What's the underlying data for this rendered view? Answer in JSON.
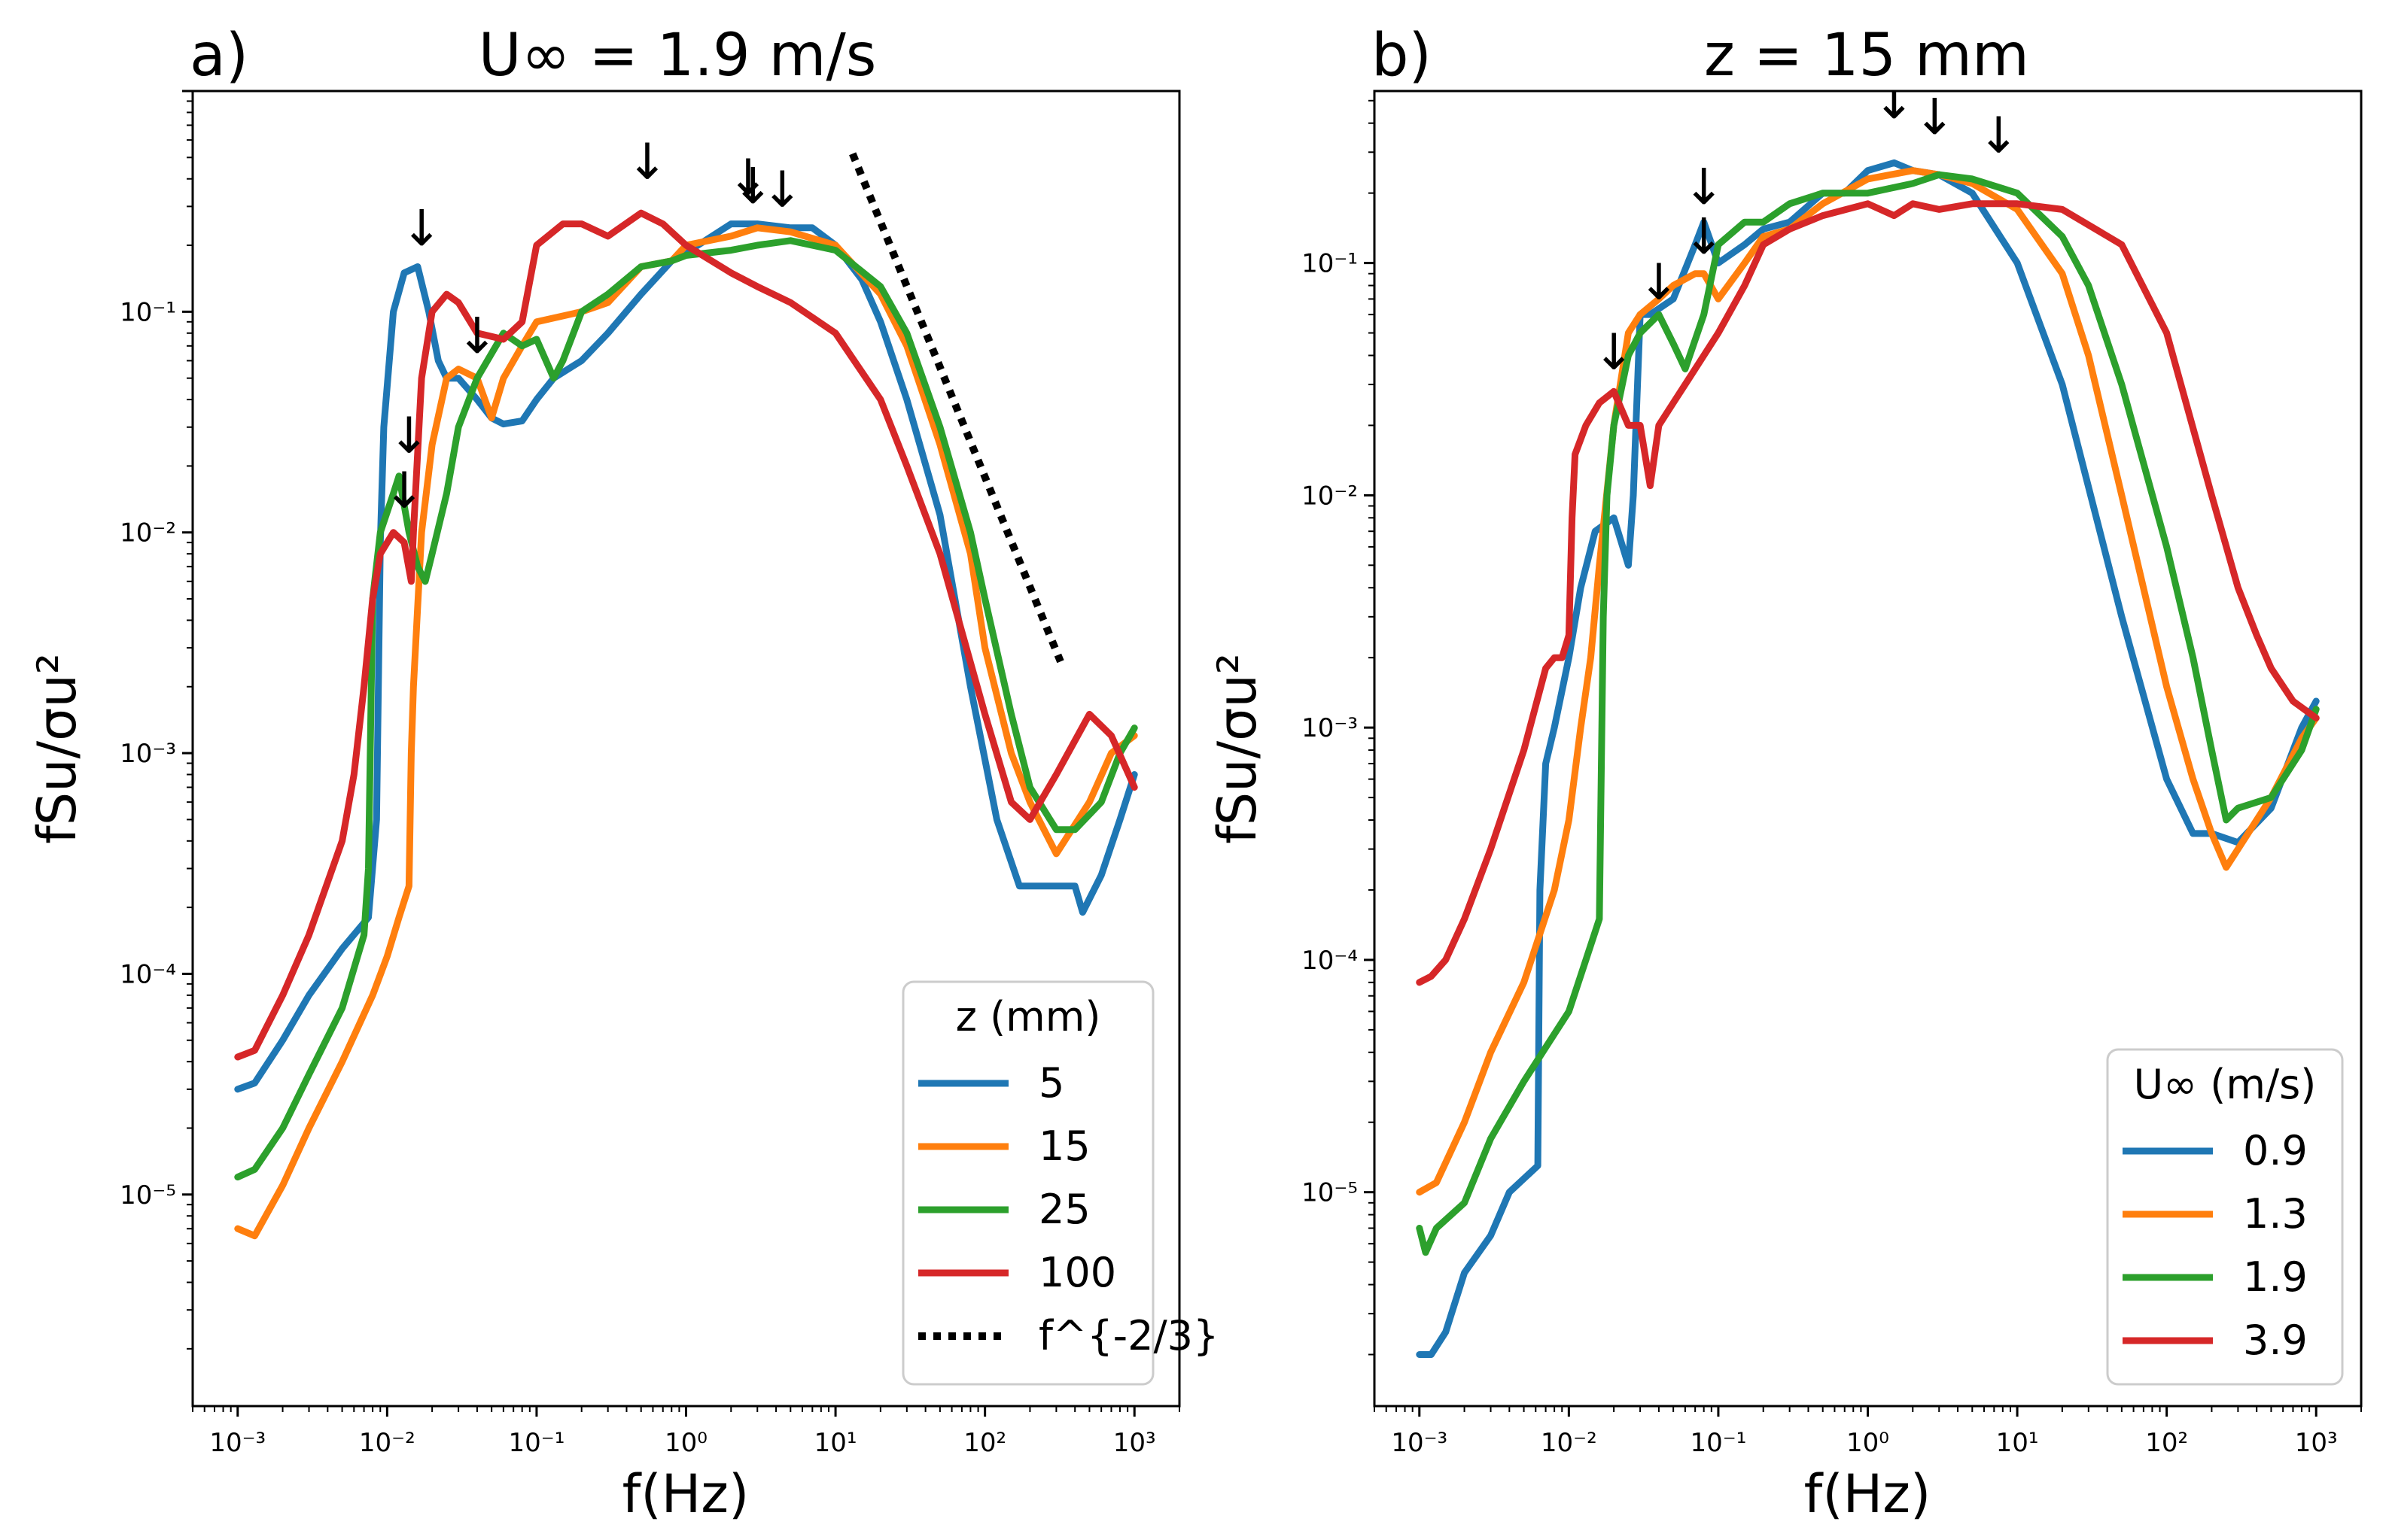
{
  "chart_data": [
    {
      "type": "line",
      "panel_label": "a)",
      "title": "U∞ = 1.9 m/s",
      "xlabel": "f(Hz)",
      "ylabel": "fSu/σu²",
      "xscale": "log",
      "yscale": "log",
      "xlim": [
        0.0005,
        2000
      ],
      "ylim": [
        1.1e-06,
        1
      ],
      "xticks": [
        0.001,
        0.01,
        0.1,
        1,
        10,
        100,
        1000
      ],
      "xtick_labels": [
        "10⁻³",
        "10⁻²",
        "10⁻¹",
        "10⁰",
        "10¹",
        "10²",
        "10³"
      ],
      "yticks": [
        1e-05,
        0.0001,
        0.001,
        0.01,
        0.1
      ],
      "ytick_labels": [
        "10⁻⁵",
        "10⁻⁴",
        "10⁻³",
        "10⁻²",
        "10⁻¹"
      ],
      "legend_title": "z (mm)",
      "legend_position": "lower-right",
      "series": [
        {
          "name": "5",
          "color": "#1f77b4",
          "x": [
            0.001,
            0.0013,
            0.002,
            0.003,
            0.005,
            0.0075,
            0.0085,
            0.009,
            0.0095,
            0.011,
            0.013,
            0.016,
            0.019,
            0.022,
            0.025,
            0.03,
            0.04,
            0.05,
            0.06,
            0.08,
            0.1,
            0.13,
            0.2,
            0.3,
            0.5,
            0.8,
            1.2,
            2,
            3,
            5,
            7,
            10,
            15,
            20,
            30,
            50,
            80,
            120,
            170,
            200,
            300,
            400,
            450,
            600,
            800,
            1000
          ],
          "y": [
            3e-05,
            3.2e-05,
            5e-05,
            8e-05,
            0.00013,
            0.00018,
            0.0005,
            0.009,
            0.03,
            0.1,
            0.15,
            0.16,
            0.1,
            0.06,
            0.05,
            0.05,
            0.04,
            0.033,
            0.031,
            0.032,
            0.04,
            0.05,
            0.06,
            0.08,
            0.12,
            0.17,
            0.2,
            0.25,
            0.25,
            0.24,
            0.24,
            0.2,
            0.14,
            0.09,
            0.04,
            0.012,
            0.002,
            0.0005,
            0.00025,
            0.00025,
            0.00025,
            0.00025,
            0.00019,
            0.00028,
            0.0005,
            0.0008
          ]
        },
        {
          "name": "15",
          "color": "#ff7f0e",
          "x": [
            0.001,
            0.0013,
            0.002,
            0.003,
            0.005,
            0.008,
            0.01,
            0.012,
            0.014,
            0.0145,
            0.015,
            0.017,
            0.02,
            0.025,
            0.03,
            0.04,
            0.05,
            0.06,
            0.08,
            0.1,
            0.2,
            0.3,
            0.5,
            0.8,
            1,
            2,
            3,
            5,
            10,
            20,
            30,
            50,
            80,
            100,
            150,
            200,
            300,
            500,
            700,
            1000
          ],
          "y": [
            7e-06,
            6.5e-06,
            1.1e-05,
            2e-05,
            4e-05,
            8e-05,
            0.00012,
            0.00018,
            0.00025,
            0.001,
            0.002,
            0.01,
            0.025,
            0.05,
            0.055,
            0.05,
            0.033,
            0.05,
            0.07,
            0.09,
            0.1,
            0.11,
            0.16,
            0.17,
            0.2,
            0.22,
            0.24,
            0.23,
            0.2,
            0.12,
            0.07,
            0.025,
            0.008,
            0.003,
            0.001,
            0.0006,
            0.00035,
            0.0006,
            0.001,
            0.0012
          ]
        },
        {
          "name": "25",
          "color": "#2ca02c",
          "x": [
            0.001,
            0.0013,
            0.002,
            0.003,
            0.005,
            0.007,
            0.0075,
            0.008,
            0.009,
            0.011,
            0.012,
            0.014,
            0.016,
            0.018,
            0.02,
            0.025,
            0.03,
            0.04,
            0.06,
            0.08,
            0.1,
            0.13,
            0.15,
            0.2,
            0.3,
            0.5,
            0.8,
            1,
            2,
            3,
            5,
            10,
            20,
            30,
            50,
            80,
            100,
            150,
            200,
            300,
            400,
            600,
            800,
            1000
          ],
          "y": [
            1.2e-05,
            1.3e-05,
            2e-05,
            3.5e-05,
            7e-05,
            0.00015,
            0.0003,
            0.005,
            0.01,
            0.015,
            0.018,
            0.01,
            0.007,
            0.006,
            0.008,
            0.015,
            0.03,
            0.05,
            0.08,
            0.07,
            0.075,
            0.05,
            0.06,
            0.1,
            0.12,
            0.16,
            0.17,
            0.18,
            0.19,
            0.2,
            0.21,
            0.19,
            0.13,
            0.08,
            0.03,
            0.01,
            0.005,
            0.0015,
            0.0007,
            0.00045,
            0.00045,
            0.0006,
            0.001,
            0.0013
          ]
        },
        {
          "name": "100",
          "color": "#d62728",
          "x": [
            0.001,
            0.0013,
            0.002,
            0.003,
            0.005,
            0.006,
            0.007,
            0.008,
            0.009,
            0.011,
            0.013,
            0.0145,
            0.015,
            0.017,
            0.02,
            0.025,
            0.03,
            0.04,
            0.06,
            0.08,
            0.1,
            0.15,
            0.2,
            0.3,
            0.5,
            0.7,
            1,
            2,
            3,
            5,
            10,
            20,
            30,
            50,
            100,
            150,
            200,
            300,
            500,
            700,
            1000
          ],
          "y": [
            4.2e-05,
            4.5e-05,
            8e-05,
            0.00015,
            0.0004,
            0.0008,
            0.002,
            0.005,
            0.008,
            0.01,
            0.009,
            0.006,
            0.01,
            0.05,
            0.1,
            0.12,
            0.11,
            0.08,
            0.075,
            0.09,
            0.2,
            0.25,
            0.25,
            0.22,
            0.28,
            0.25,
            0.2,
            0.15,
            0.13,
            0.11,
            0.08,
            0.04,
            0.02,
            0.008,
            0.0015,
            0.0006,
            0.0005,
            0.0008,
            0.0015,
            0.0012,
            0.0007
          ]
        },
        {
          "name": "f^{-2/3}",
          "color": "#000000",
          "style": "dotted",
          "x": [
            13,
            320
          ],
          "y": [
            0.52,
            0.0026
          ]
        }
      ],
      "annotations": [
        {
          "text": "↓",
          "x": 0.017,
          "y": 0.2,
          "color": "#000000"
        },
        {
          "text": "↓",
          "x": 0.04,
          "y": 0.065,
          "color": "#000000"
        },
        {
          "text": "↓",
          "x": 0.014,
          "y": 0.023,
          "color": "#000000"
        },
        {
          "text": "↓",
          "x": 0.013,
          "y": 0.013,
          "color": "#000000"
        },
        {
          "text": "↓",
          "x": 0.55,
          "y": 0.4,
          "color": "#b0b0b0"
        },
        {
          "text": "↓",
          "x": 2.6,
          "y": 0.34,
          "color": "#b0b0b0"
        },
        {
          "text": "↓",
          "x": 2.8,
          "y": 0.31,
          "color": "#b0b0b0"
        },
        {
          "text": "↓",
          "x": 4.4,
          "y": 0.3,
          "color": "#b0b0b0"
        }
      ]
    },
    {
      "type": "line",
      "panel_label": "b)",
      "title": "z = 15 mm",
      "xlabel": "f(Hz)",
      "ylabel": "fSu/σu²",
      "xscale": "log",
      "yscale": "log",
      "xlim": [
        0.0005,
        2000
      ],
      "ylim": [
        1.2e-06,
        0.55
      ],
      "xticks": [
        0.001,
        0.01,
        0.1,
        1,
        10,
        100,
        1000
      ],
      "xtick_labels": [
        "10⁻³",
        "10⁻²",
        "10⁻¹",
        "10⁰",
        "10¹",
        "10²",
        "10³"
      ],
      "yticks": [
        1e-05,
        0.0001,
        0.001,
        0.01,
        0.1
      ],
      "ytick_labels": [
        "10⁻⁵",
        "10⁻⁴",
        "10⁻³",
        "10⁻²",
        "10⁻¹"
      ],
      "legend_title": "U∞ (m/s)",
      "legend_position": "lower-right",
      "series": [
        {
          "name": "0.9",
          "color": "#1f77b4",
          "x": [
            0.001,
            0.0012,
            0.0015,
            0.002,
            0.003,
            0.004,
            0.0062,
            0.0064,
            0.007,
            0.008,
            0.01,
            0.012,
            0.015,
            0.02,
            0.025,
            0.027,
            0.03,
            0.035,
            0.05,
            0.07,
            0.08,
            0.1,
            0.15,
            0.2,
            0.3,
            0.5,
            0.7,
            1,
            1.5,
            2,
            3,
            5,
            10,
            20,
            50,
            100,
            150,
            200,
            300,
            500,
            800,
            1000
          ],
          "y": [
            2e-06,
            2e-06,
            2.5e-06,
            4.5e-06,
            6.5e-06,
            1e-05,
            1.3e-05,
            0.0002,
            0.0007,
            0.001,
            0.002,
            0.004,
            0.007,
            0.008,
            0.005,
            0.01,
            0.06,
            0.06,
            0.07,
            0.12,
            0.15,
            0.1,
            0.12,
            0.14,
            0.15,
            0.2,
            0.2,
            0.25,
            0.27,
            0.25,
            0.24,
            0.2,
            0.1,
            0.03,
            0.003,
            0.0006,
            0.00035,
            0.00035,
            0.00032,
            0.00045,
            0.001,
            0.0013
          ]
        },
        {
          "name": "1.3",
          "color": "#ff7f0e",
          "x": [
            0.001,
            0.0013,
            0.002,
            0.003,
            0.005,
            0.008,
            0.01,
            0.012,
            0.014,
            0.016,
            0.02,
            0.025,
            0.03,
            0.04,
            0.05,
            0.07,
            0.08,
            0.1,
            0.15,
            0.2,
            0.3,
            0.5,
            1,
            2,
            3,
            5,
            10,
            20,
            30,
            50,
            100,
            150,
            200,
            250,
            300,
            500,
            800,
            1000
          ],
          "y": [
            1e-05,
            1.1e-05,
            2e-05,
            4e-05,
            8e-05,
            0.0002,
            0.0004,
            0.001,
            0.002,
            0.005,
            0.02,
            0.05,
            0.06,
            0.07,
            0.08,
            0.09,
            0.09,
            0.07,
            0.1,
            0.13,
            0.14,
            0.18,
            0.23,
            0.25,
            0.24,
            0.22,
            0.17,
            0.09,
            0.04,
            0.01,
            0.0015,
            0.0006,
            0.00035,
            0.00025,
            0.0003,
            0.0005,
            0.0009,
            0.0011
          ]
        },
        {
          "name": "1.9",
          "color": "#2ca02c",
          "x": [
            0.001,
            0.0011,
            0.0013,
            0.002,
            0.003,
            0.005,
            0.01,
            0.013,
            0.016,
            0.017,
            0.018,
            0.02,
            0.025,
            0.03,
            0.04,
            0.05,
            0.06,
            0.08,
            0.1,
            0.15,
            0.2,
            0.3,
            0.5,
            1,
            2,
            3,
            5,
            10,
            20,
            30,
            50,
            100,
            150,
            200,
            250,
            300,
            500,
            800,
            1000
          ],
          "y": [
            7e-06,
            5.5e-06,
            7e-06,
            9e-06,
            1.7e-05,
            3e-05,
            6e-05,
            0.0001,
            0.00015,
            0.003,
            0.01,
            0.02,
            0.04,
            0.05,
            0.06,
            0.045,
            0.035,
            0.06,
            0.12,
            0.15,
            0.15,
            0.18,
            0.2,
            0.2,
            0.22,
            0.24,
            0.23,
            0.2,
            0.13,
            0.08,
            0.03,
            0.006,
            0.002,
            0.0008,
            0.0004,
            0.00045,
            0.0005,
            0.0008,
            0.0012
          ]
        },
        {
          "name": "3.9",
          "color": "#d62728",
          "x": [
            0.001,
            0.0012,
            0.0015,
            0.002,
            0.003,
            0.005,
            0.007,
            0.008,
            0.009,
            0.01,
            0.0105,
            0.011,
            0.013,
            0.016,
            0.02,
            0.025,
            0.03,
            0.035,
            0.04,
            0.05,
            0.06,
            0.08,
            0.1,
            0.15,
            0.2,
            0.3,
            0.5,
            1,
            1.5,
            2,
            3,
            5,
            10,
            20,
            50,
            100,
            200,
            300,
            400,
            500,
            700,
            1000
          ],
          "y": [
            8e-05,
            8.5e-05,
            0.0001,
            0.00015,
            0.0003,
            0.0008,
            0.0018,
            0.002,
            0.002,
            0.0025,
            0.008,
            0.015,
            0.02,
            0.025,
            0.028,
            0.02,
            0.02,
            0.011,
            0.02,
            0.025,
            0.03,
            0.04,
            0.05,
            0.08,
            0.12,
            0.14,
            0.16,
            0.18,
            0.16,
            0.18,
            0.17,
            0.18,
            0.18,
            0.17,
            0.12,
            0.05,
            0.01,
            0.004,
            0.0025,
            0.0018,
            0.0013,
            0.0011
          ]
        }
      ],
      "annotations": [
        {
          "text": "↓",
          "x": 0.08,
          "y": 0.18,
          "color": "#000000"
        },
        {
          "text": "↓",
          "x": 0.08,
          "y": 0.11,
          "color": "#000000"
        },
        {
          "text": "↓",
          "x": 0.04,
          "y": 0.07,
          "color": "#000000"
        },
        {
          "text": "↓",
          "x": 0.02,
          "y": 0.035,
          "color": "#000000"
        },
        {
          "text": "↓",
          "x": 1.5,
          "y": 0.42,
          "color": "#b0b0b0"
        },
        {
          "text": "↓",
          "x": 2.8,
          "y": 0.36,
          "color": "#b0b0b0"
        },
        {
          "text": "↓",
          "x": 7.5,
          "y": 0.3,
          "color": "#b0b0b0"
        }
      ]
    }
  ]
}
